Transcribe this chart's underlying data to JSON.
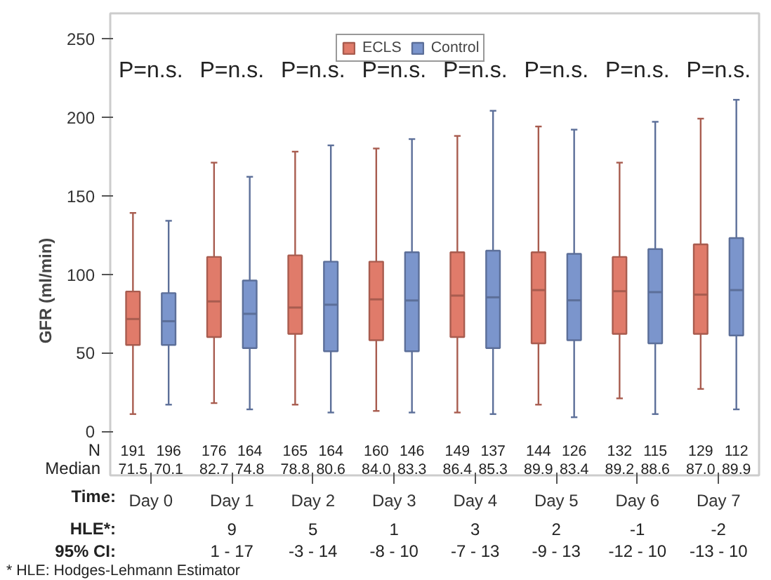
{
  "chart_data": {
    "type": "box",
    "ylabel": "GFR (ml/min)",
    "xlabel": "Time:",
    "categories": [
      "Day 0",
      "Day 1",
      "Day 2",
      "Day 3",
      "Day 4",
      "Day 5",
      "Day 6",
      "Day 7"
    ],
    "ylim": [
      -28,
      266
    ],
    "yticks": [
      0,
      50,
      100,
      150,
      200,
      250
    ],
    "grid": false,
    "legend": "top",
    "series": [
      {
        "name": "ECLS",
        "color": "#e07b6a",
        "value_labels": [
          "71.5",
          "82.7",
          "78.8",
          "84.0",
          "86.4",
          "89.9",
          "89.2",
          "87.0"
        ],
        "boxes": [
          {
            "low": 11,
            "q1": 55,
            "median": 71.5,
            "q3": 89,
            "high": 139
          },
          {
            "low": 18,
            "q1": 60,
            "median": 82.7,
            "q3": 111,
            "high": 171
          },
          {
            "low": 17,
            "q1": 62,
            "median": 78.8,
            "q3": 112,
            "high": 178
          },
          {
            "low": 13,
            "q1": 58,
            "median": 84.0,
            "q3": 108,
            "high": 180
          },
          {
            "low": 12,
            "q1": 60,
            "median": 86.4,
            "q3": 114,
            "high": 188
          },
          {
            "low": 17,
            "q1": 56,
            "median": 89.9,
            "q3": 114,
            "high": 194
          },
          {
            "low": 21,
            "q1": 62,
            "median": 89.2,
            "q3": 111,
            "high": 171
          },
          {
            "low": 27,
            "q1": 62,
            "median": 87.0,
            "q3": 119,
            "high": 199
          }
        ]
      },
      {
        "name": "Control",
        "color": "#7b95cc",
        "value_labels": [
          "70.1",
          "74.8",
          "80.6",
          "83.3",
          "85.3",
          "83.4",
          "88.6",
          "89.9"
        ],
        "boxes": [
          {
            "low": 17,
            "q1": 55,
            "median": 70.1,
            "q3": 88,
            "high": 134
          },
          {
            "low": 14,
            "q1": 53,
            "median": 74.8,
            "q3": 96,
            "high": 162
          },
          {
            "low": 12,
            "q1": 51,
            "median": 80.6,
            "q3": 108,
            "high": 182
          },
          {
            "low": 12,
            "q1": 51,
            "median": 83.3,
            "q3": 114,
            "high": 186
          },
          {
            "low": 11,
            "q1": 53,
            "median": 85.3,
            "q3": 115,
            "high": 204
          },
          {
            "low": 9,
            "q1": 58,
            "median": 83.4,
            "q3": 113,
            "high": 192
          },
          {
            "low": 11,
            "q1": 56,
            "median": 88.6,
            "q3": 116,
            "high": 197
          },
          {
            "low": 14,
            "q1": 61,
            "median": 89.9,
            "q3": 123,
            "high": 211
          }
        ]
      }
    ],
    "annotations": [
      "P=n.s.",
      "P=n.s.",
      "P=n.s.",
      "P=n.s.",
      "P=n.s.",
      "P=n.s.",
      "P=n.s.",
      "P=n.s.",
      "N",
      "Median",
      "191",
      "196",
      "176",
      "164",
      "165",
      "164",
      "160",
      "146",
      "149",
      "137",
      "144",
      "126",
      "132",
      "115",
      "129",
      "112",
      "HLE*:",
      "95% CI:",
      "9",
      "5",
      "1",
      "3",
      "2",
      "-1",
      "-2",
      "1 - 17",
      "-3 - 14",
      "-8 - 10",
      "-7 - 13",
      "-9 - 13",
      "-12 - 10",
      "-13 - 10",
      "* HLE: Hodges-Lehmann Estimator"
    ]
  }
}
